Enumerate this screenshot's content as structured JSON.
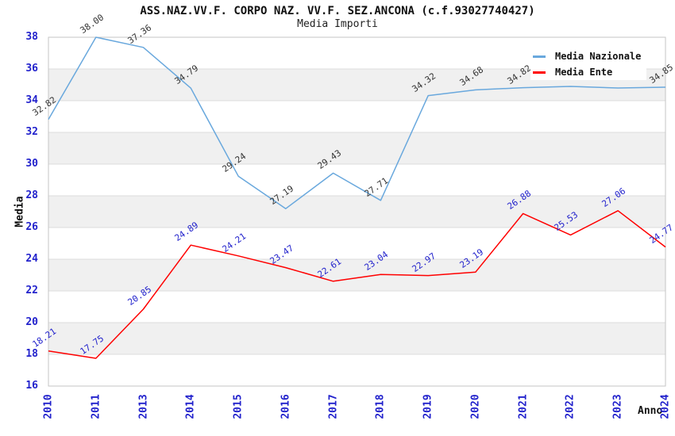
{
  "title": "ASS.NAZ.VV.F. CORPO NAZ. VV.F. SEZ.ANCONA (c.f.93027740427)",
  "subtitle": "Media Importi",
  "legend": {
    "items": [
      {
        "label": "Media Nazionale",
        "color": "#69a8dd"
      },
      {
        "label": "Media Ente",
        "color": "#ff0000"
      }
    ]
  },
  "chart_data": {
    "type": "line",
    "title": "ASS.NAZ.VV.F. CORPO NAZ. VV.F. SEZ.ANCONA (c.f.93027740427)",
    "subtitle": "Media Importi",
    "xlabel": "Anno",
    "ylabel": "Media",
    "ylim": [
      16,
      38
    ],
    "ytick_step": 2,
    "yticks": [
      16,
      18,
      20,
      22,
      24,
      26,
      28,
      30,
      32,
      34,
      36,
      38
    ],
    "grid": "horizontal",
    "band_colors": [
      "#ffffff",
      "#f0f0f0"
    ],
    "legend_position": "top-right-inside",
    "categories": [
      "2010",
      "2011",
      "2013",
      "2014",
      "2015",
      "2016",
      "2017",
      "2018",
      "2019",
      "2020",
      "2021",
      "2022",
      "2023",
      "2024"
    ],
    "series": [
      {
        "name": "Media Nazionale",
        "color": "#69a8dd",
        "label_color": "#333333",
        "values": [
          32.82,
          38.0,
          37.36,
          34.79,
          29.24,
          27.19,
          29.43,
          27.71,
          34.32,
          34.68,
          34.82,
          34.9,
          34.8,
          34.85
        ],
        "labels": [
          "32.82",
          "38.00",
          "37.36",
          "34.79",
          "29.24",
          "27.19",
          "29.43",
          "27.71",
          "34.32",
          "34.68",
          "34.82",
          "",
          "",
          "34.85"
        ]
      },
      {
        "name": "Media Ente",
        "color": "#ff0000",
        "label_color": "#2222cc",
        "values": [
          18.21,
          17.75,
          20.85,
          24.89,
          24.21,
          23.47,
          22.61,
          23.04,
          22.97,
          23.19,
          26.88,
          25.53,
          27.06,
          24.77
        ],
        "labels": [
          "18.21",
          "17.75",
          "20.85",
          "24.89",
          "24.21",
          "23.47",
          "22.61",
          "23.04",
          "22.97",
          "23.19",
          "26.88",
          "25.53",
          "27.06",
          "24.77"
        ]
      }
    ]
  }
}
